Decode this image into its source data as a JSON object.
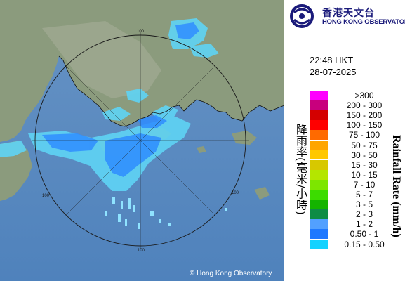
{
  "logo": {
    "name_zh": "香港天文台",
    "name_en": "HONG KONG OBSERVATORY",
    "icon": "hko-logo-icon"
  },
  "timestamp": {
    "time": "22:48 HKT",
    "date": "28-07-2025"
  },
  "legend": {
    "title_zh": "降雨率(毫米/小時)",
    "title_en": "Rainfall Rate (mm/h)",
    "items": [
      {
        "label": ">300",
        "color": "#ff00ff"
      },
      {
        "label": "200 - 300",
        "color": "#c8007d"
      },
      {
        "label": "150 - 200",
        "color": "#d40000"
      },
      {
        "label": "100 - 150",
        "color": "#ff0000"
      },
      {
        "label": "75 - 100",
        "color": "#ff6a00"
      },
      {
        "label": "50 - 75",
        "color": "#ffa500"
      },
      {
        "label": "30 - 50",
        "color": "#ffc800"
      },
      {
        "label": "15 - 30",
        "color": "#d7c800"
      },
      {
        "label": "10 - 15",
        "color": "#b4e600"
      },
      {
        "label": "7 - 10",
        "color": "#7de600"
      },
      {
        "label": "5 - 7",
        "color": "#3cdc00"
      },
      {
        "label": "3 - 5",
        "color": "#14b400"
      },
      {
        "label": "2 - 3",
        "color": "#0e8c46"
      },
      {
        "label": "1 - 2",
        "color": "#52a0ff"
      },
      {
        "label": "0.50 - 1",
        "color": "#1e78ff"
      },
      {
        "label": "0.15 - 0.50",
        "color": "#14d2ff"
      }
    ]
  },
  "map": {
    "range_labels": [
      "100",
      "100",
      "100",
      "100"
    ],
    "copyright": "© Hong Kong Observatory",
    "sea_color": "#5a8cc0",
    "land_color": "#8a9a7c"
  }
}
